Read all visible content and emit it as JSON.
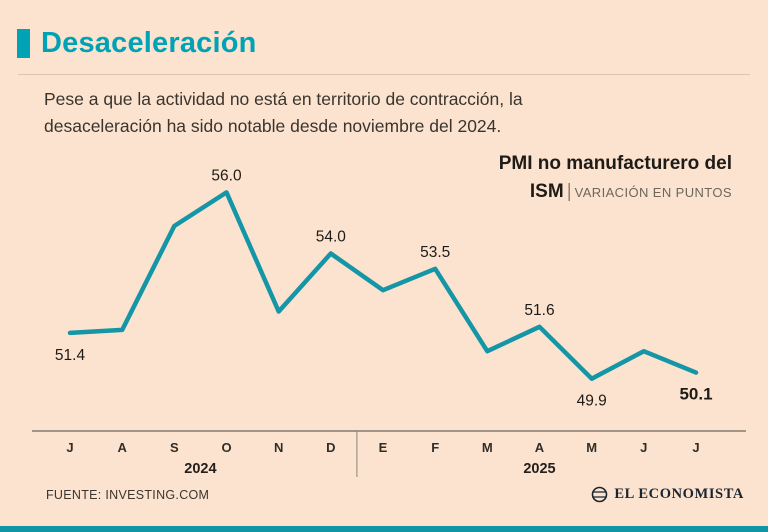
{
  "page": {
    "title": "Desaceleración",
    "description": "Pese a que la actividad no está en territorio de contracción, la desaceleración ha sido notable desde noviembre del 2024.",
    "source_label": "FUENTE: INVESTING.COM",
    "brand": "EL ECONOMISTA",
    "colors": {
      "background": "#fbe3d0",
      "accent": "#00a2b5",
      "line": "#1596a6"
    }
  },
  "chart_data": {
    "type": "line",
    "title": "PMI no manufacturero del ISM",
    "title_lines": [
      "PMI no manufacturero del",
      "ISM"
    ],
    "separator": "|",
    "units_label": "VARIACIÓN EN PUNTOS",
    "x": [
      "J",
      "A",
      "S",
      "O",
      "N",
      "D",
      "E",
      "F",
      "M",
      "A",
      "M",
      "J",
      "J"
    ],
    "year_groups": [
      {
        "label": "2024",
        "span": [
          0,
          5
        ]
      },
      {
        "label": "2025",
        "span": [
          6,
          12
        ]
      }
    ],
    "values": [
      51.4,
      51.5,
      54.9,
      56.0,
      52.1,
      54.0,
      52.8,
      53.5,
      50.8,
      51.6,
      49.9,
      50.8,
      50.1
    ],
    "point_labels": [
      {
        "index": 0,
        "text": "51.4",
        "position": "below",
        "bold": false
      },
      {
        "index": 3,
        "text": "56.0",
        "position": "above",
        "bold": false
      },
      {
        "index": 5,
        "text": "54.0",
        "position": "above",
        "bold": false
      },
      {
        "index": 7,
        "text": "53.5",
        "position": "above",
        "bold": false
      },
      {
        "index": 9,
        "text": "51.6",
        "position": "above",
        "bold": false
      },
      {
        "index": 10,
        "text": "49.9",
        "position": "below",
        "bold": false
      },
      {
        "index": 12,
        "text": "50.1",
        "position": "below",
        "bold": true
      }
    ],
    "ylim": [
      49.4,
      56.8
    ],
    "line_color": "#1596a6",
    "grid": false,
    "legend": false
  }
}
